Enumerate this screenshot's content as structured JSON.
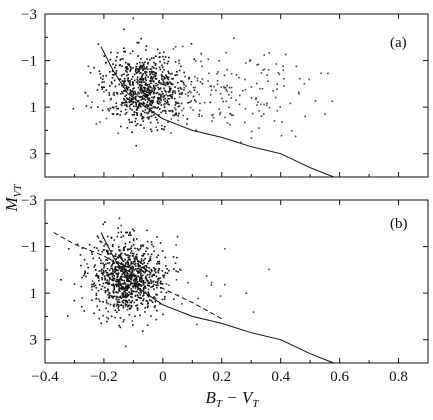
{
  "chart_data": [
    {
      "type": "scatter",
      "panel_label": "(a)",
      "xlim": [
        -0.4,
        0.9
      ],
      "ylim": [
        -3,
        4
      ],
      "y_inverted": true,
      "xticks": [
        "−0.4",
        "−0.2",
        "0",
        "0.2",
        "0.4",
        "0.6",
        "0.8"
      ],
      "yticks": [
        "−3",
        "−1",
        "1",
        "3"
      ],
      "xlabel": "",
      "ylabel": "M_VT",
      "series": [
        {
          "kind": "points",
          "clusters": [
            {
              "x_mean": -0.06,
              "x_sd": 0.07,
              "y_mean": 0.2,
              "y_sd": 0.75,
              "n": 720
            },
            {
              "x_mean": 0.15,
              "x_sd": 0.18,
              "y_mean": 0.4,
              "y_sd": 0.9,
              "n": 230
            }
          ]
        },
        {
          "kind": "line",
          "points": [
            [
              -0.21,
              -1.6
            ],
            [
              -0.17,
              -0.6
            ],
            [
              -0.12,
              0.4
            ],
            [
              -0.07,
              0.9
            ],
            [
              0.0,
              1.5
            ],
            [
              0.1,
              2.0
            ],
            [
              0.2,
              2.3
            ],
            [
              0.3,
              2.7
            ],
            [
              0.4,
              3.0
            ],
            [
              0.5,
              3.6
            ],
            [
              0.58,
              4.0
            ]
          ]
        }
      ]
    },
    {
      "type": "scatter",
      "panel_label": "(b)",
      "xlim": [
        -0.4,
        0.9
      ],
      "ylim": [
        -3,
        4
      ],
      "y_inverted": true,
      "xticks": [
        "−0.4",
        "−0.2",
        "0",
        "0.2",
        "0.4",
        "0.6",
        "0.8"
      ],
      "yticks": [
        "−3",
        "−1",
        "1",
        "3"
      ],
      "xlabel": "B_T − V_T",
      "ylabel": "",
      "series": [
        {
          "kind": "points",
          "clusters": [
            {
              "x_mean": -0.12,
              "x_sd": 0.06,
              "y_mean": 0.3,
              "y_sd": 0.8,
              "n": 880
            },
            {
              "x_mean": -0.05,
              "x_sd": 0.15,
              "y_mean": 0.8,
              "y_sd": 1.0,
              "n": 60
            }
          ]
        },
        {
          "kind": "line",
          "points": [
            [
              -0.21,
              -1.6
            ],
            [
              -0.17,
              -0.6
            ],
            [
              -0.12,
              0.4
            ],
            [
              -0.07,
              0.9
            ],
            [
              0.0,
              1.5
            ],
            [
              0.1,
              2.0
            ],
            [
              0.2,
              2.3
            ],
            [
              0.3,
              2.7
            ],
            [
              0.4,
              3.0
            ],
            [
              0.5,
              3.6
            ],
            [
              0.58,
              4.0
            ]
          ]
        },
        {
          "kind": "dashed-line",
          "points": [
            [
              -0.37,
              -1.6
            ],
            [
              -0.3,
              -1.1
            ],
            [
              -0.2,
              -0.6
            ],
            [
              -0.1,
              0.2
            ],
            [
              0.0,
              0.8
            ],
            [
              0.1,
              1.4
            ],
            [
              0.2,
              2.1
            ]
          ]
        }
      ]
    }
  ]
}
